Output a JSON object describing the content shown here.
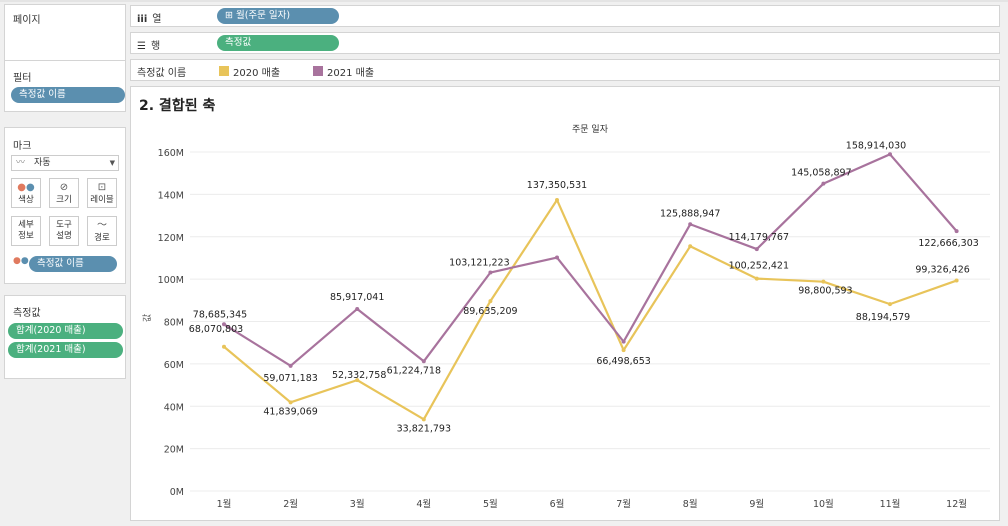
{
  "sidebar": {
    "pages_title": "페이지",
    "filters_title": "필터",
    "filter_pill": "측정값 이름",
    "marks_title": "마크",
    "mark_type": "자동",
    "mark_buttons": {
      "color": "색상",
      "size": "크기",
      "label": "레이블",
      "detail_line1": "세부",
      "detail_line2": "정보",
      "tooltip_line1": "도구",
      "tooltip_line2": "설명",
      "path": "경로"
    },
    "marks_pill": "측정값 이름",
    "measures_title": "측정값",
    "measure_pills": [
      "합계(2020 매출)",
      "합계(2021 매출)"
    ]
  },
  "shelves": {
    "columns_label": "열",
    "columns_pill": "⊞ 월(주문 일자)",
    "rows_label": "행",
    "rows_pill": "측정값",
    "legend_label": "측정값 이름",
    "legend_items": [
      {
        "name": "2020 매출",
        "color": "#e8c45a"
      },
      {
        "name": "2021 매출",
        "color": "#a8739d"
      }
    ]
  },
  "sheet_title": "2. 결합된 축",
  "chart_data": {
    "type": "line",
    "title": "주문 일자",
    "ylabel": "값",
    "categories": [
      "1월",
      "2월",
      "3월",
      "4월",
      "5월",
      "6월",
      "7월",
      "8월",
      "9월",
      "10월",
      "11월",
      "12월"
    ],
    "ylim": [
      0,
      160000000
    ],
    "yticks": [
      {
        "value": 0,
        "label": "0M"
      },
      {
        "value": 20000000,
        "label": "20M"
      },
      {
        "value": 40000000,
        "label": "40M"
      },
      {
        "value": 60000000,
        "label": "60M"
      },
      {
        "value": 80000000,
        "label": "80M"
      },
      {
        "value": 100000000,
        "label": "100M"
      },
      {
        "value": 120000000,
        "label": "120M"
      },
      {
        "value": 140000000,
        "label": "140M"
      },
      {
        "value": 160000000,
        "label": "160M"
      }
    ],
    "grid": true,
    "series": [
      {
        "name": "2020 매출",
        "color": "#e8c45a",
        "values": [
          68070803,
          41839069,
          52332758,
          33821793,
          89635209,
          137350531,
          66498653,
          115500000,
          100252421,
          98800593,
          88194579,
          99326426
        ],
        "labels": [
          "68,070,803",
          "41,839,069",
          "52,332,758",
          "33,821,793",
          "89,635,209",
          "137,350,531",
          "66,498,653",
          "",
          "100,252,421",
          "98,800,593",
          "88,194,579",
          "99,326,426"
        ]
      },
      {
        "name": "2021 매출",
        "color": "#a8739d",
        "values": [
          78685345,
          59071183,
          85917041,
          61224718,
          103121223,
          110200000,
          70500000,
          125888947,
          114179767,
          145058897,
          158914030,
          122666303
        ],
        "labels": [
          "78,685,345",
          "59,071,183",
          "85,917,041",
          "61,224,718",
          "103,121,223",
          "",
          "",
          "125,888,947",
          "114,179,767",
          "145,058,897",
          "158,914,030",
          "122,666,303"
        ]
      }
    ]
  }
}
